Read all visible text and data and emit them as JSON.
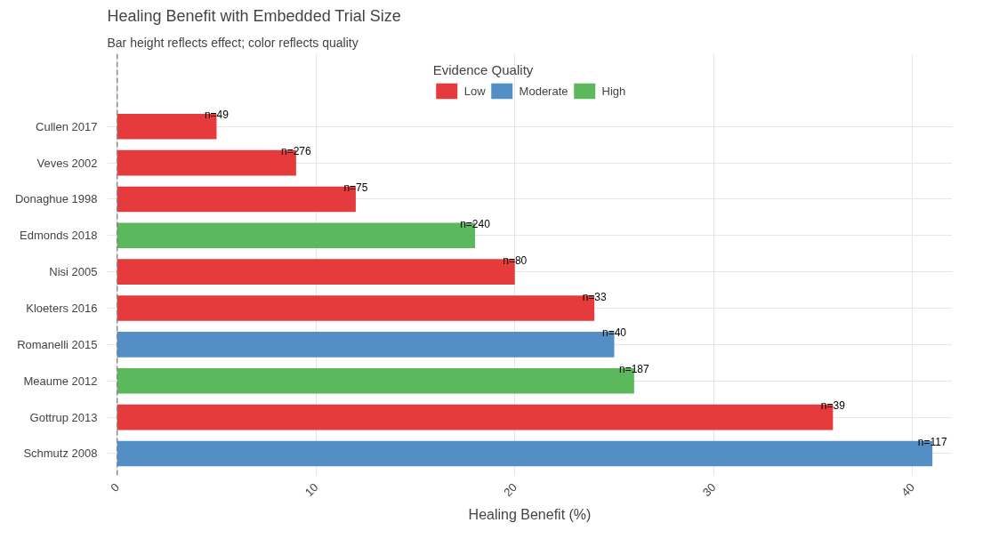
{
  "chart_data": {
    "type": "bar",
    "orientation": "horizontal",
    "title": "Healing Benefit with Embedded Trial Size",
    "subtitle": "Bar height reflects effect; color reflects quality",
    "xlabel": "Healing Benefit (%)",
    "legend_title": "Evidence Quality",
    "categories": [
      "Cullen 2017",
      "Veves 2002",
      "Donaghue 1998",
      "Edmonds 2018",
      "Nisi 2005",
      "Kloeters 2016",
      "Romanelli 2015",
      "Meaume 2012",
      "Gottrup 2013",
      "Schmutz 2008"
    ],
    "series": [
      {
        "name": "Low",
        "color": "#e63b3d",
        "values": [
          5,
          9,
          12,
          null,
          20,
          24,
          null,
          null,
          36,
          null
        ]
      },
      {
        "name": "Moderate",
        "color": "#538fc5",
        "values": [
          null,
          null,
          null,
          null,
          null,
          null,
          25,
          null,
          null,
          41
        ]
      },
      {
        "name": "High",
        "color": "#5cb85c",
        "values": [
          null,
          null,
          null,
          18,
          null,
          null,
          null,
          26,
          null,
          null
        ]
      }
    ],
    "annotations": [
      {
        "text": "n=49",
        "x": 5,
        "y": "Cullen 2017"
      },
      {
        "text": "n=276",
        "x": 9,
        "y": "Veves 2002"
      },
      {
        "text": "n=75",
        "x": 12,
        "y": "Donaghue 1998"
      },
      {
        "text": "n=240",
        "x": 18,
        "y": "Edmonds 2018"
      },
      {
        "text": "n=80",
        "x": 20,
        "y": "Nisi 2005"
      },
      {
        "text": "n=33",
        "x": 24,
        "y": "Kloeters 2016"
      },
      {
        "text": "n=40",
        "x": 25,
        "y": "Romanelli 2015"
      },
      {
        "text": "n=187",
        "x": 26,
        "y": "Meaume 2012"
      },
      {
        "text": "n=39",
        "x": 36,
        "y": "Gottrup 2013"
      },
      {
        "text": "n=117",
        "x": 41,
        "y": "Schmutz 2008"
      }
    ],
    "xlim": [
      -0.5,
      42
    ],
    "xticks": [
      0,
      10,
      20,
      30,
      40
    ],
    "ref_lines": [
      {
        "axis": "x",
        "value": 0,
        "label": null,
        "color": "#888888",
        "line_style": "dashed"
      }
    ],
    "grid": true,
    "legend": "top"
  }
}
